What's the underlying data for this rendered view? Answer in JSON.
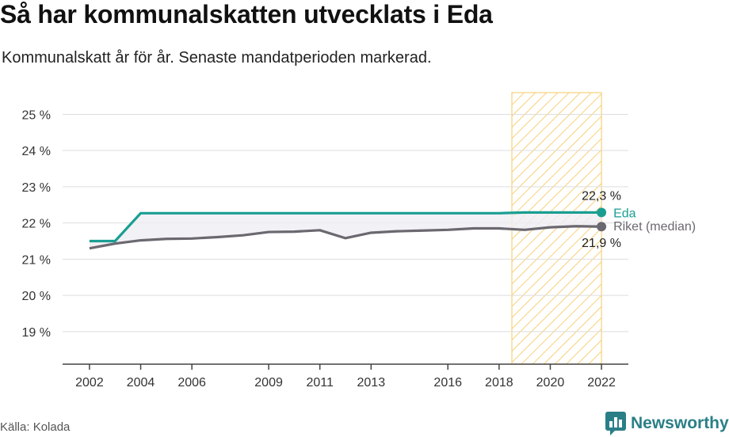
{
  "title": "Så har kommunalskatten utvecklats i Eda",
  "subtitle": "Kommunalskatt år för år. Senaste mandatperioden markerad.",
  "source": "Källa: Kolada",
  "brand": {
    "name": "Newsworthy",
    "icon": "newsworthy-logo-icon"
  },
  "colors": {
    "eda": "#1a9e92",
    "riket": "#6b6870",
    "highlight": "#f7cc6a",
    "grid": "#dddddd",
    "axis": "#444444"
  },
  "chart_data": {
    "type": "line",
    "x_ticks": [
      2002,
      2004,
      2006,
      2009,
      2011,
      2013,
      2016,
      2018,
      2020,
      2022
    ],
    "y_ticks": [
      19,
      20,
      21,
      22,
      23,
      24,
      25
    ],
    "y_tick_labels": [
      "19 %",
      "20 %",
      "21 %",
      "22 %",
      "23 %",
      "24 %",
      "25 %"
    ],
    "ylim": [
      18.1,
      25.6
    ],
    "xlim": [
      2000.95,
      2023.05
    ],
    "highlight_period": [
      2018.5,
      2022
    ],
    "grid": true,
    "series": [
      {
        "name": "Eda",
        "color": "#1a9e92",
        "x": [
          2002,
          2003,
          2004,
          2005,
          2006,
          2007,
          2008,
          2009,
          2010,
          2011,
          2012,
          2013,
          2014,
          2015,
          2016,
          2017,
          2018,
          2019,
          2020,
          2021,
          2022
        ],
        "values": [
          21.5,
          21.5,
          22.27,
          22.27,
          22.27,
          22.27,
          22.27,
          22.27,
          22.27,
          22.27,
          22.27,
          22.27,
          22.27,
          22.27,
          22.27,
          22.27,
          22.27,
          22.29,
          22.29,
          22.29,
          22.29
        ],
        "end_label": "22,3 %"
      },
      {
        "name": "Riket (median)",
        "color": "#6b6870",
        "x": [
          2002,
          2003,
          2004,
          2005,
          2006,
          2007,
          2008,
          2009,
          2010,
          2011,
          2012,
          2013,
          2014,
          2015,
          2016,
          2017,
          2018,
          2019,
          2020,
          2021,
          2022
        ],
        "values": [
          21.3,
          21.43,
          21.52,
          21.56,
          21.57,
          21.61,
          21.66,
          21.75,
          21.76,
          21.8,
          21.58,
          21.73,
          21.77,
          21.79,
          21.81,
          21.85,
          21.85,
          21.81,
          21.88,
          21.91,
          21.9
        ],
        "end_label": "21,9 %"
      }
    ]
  }
}
